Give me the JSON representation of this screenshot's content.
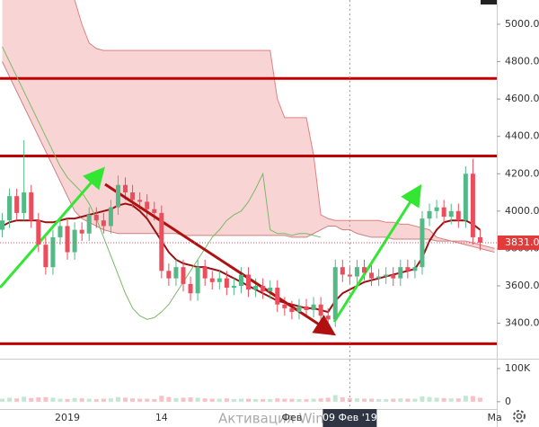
{
  "chart_data": {
    "type": "candlestick",
    "categories": [
      null,
      null,
      null,
      null,
      null,
      null,
      null,
      null,
      null,
      "2019",
      null,
      null,
      null,
      null,
      null,
      null,
      null,
      null,
      null,
      null,
      null,
      null,
      "14",
      null,
      null,
      null,
      null,
      null,
      null,
      null,
      null,
      null,
      null,
      null,
      null,
      null,
      null,
      null,
      null,
      null,
      "Фев",
      null,
      null,
      null,
      null,
      null,
      null,
      null,
      "09 Фев '19",
      null,
      null,
      null,
      null,
      null,
      null,
      null,
      null,
      null,
      null,
      null,
      null,
      null,
      null,
      null,
      null,
      null,
      null,
      null,
      "Ма"
    ],
    "open": [
      3900,
      3950,
      4080,
      3990,
      4100,
      3950,
      3820,
      3700,
      3860,
      3920,
      3780,
      3900,
      3880,
      3980,
      3950,
      3920,
      4020,
      4140,
      4100,
      4060,
      4050,
      4010,
      3990,
      3680,
      3640,
      3700,
      3610,
      3560,
      3700,
      3640,
      3620,
      3640,
      3590,
      3600,
      3660,
      3580,
      3600,
      3570,
      3590,
      3500,
      3480,
      3460,
      3490,
      3470,
      3500,
      3440,
      3420,
      3700,
      3660,
      3650,
      3700,
      3670,
      3640,
      3650,
      3660,
      3640,
      3700,
      3680,
      3700,
      3960,
      4000,
      4020,
      3970,
      4000,
      3950,
      4200,
      3860,
      null,
      null
    ],
    "high": [
      3990,
      4120,
      4120,
      4380,
      4140,
      3990,
      3860,
      3900,
      3960,
      3960,
      3940,
      3940,
      4020,
      4020,
      3990,
      4060,
      4190,
      4180,
      4140,
      4100,
      4090,
      4050,
      4030,
      3720,
      3740,
      3740,
      3650,
      3740,
      3740,
      3680,
      3680,
      3680,
      3640,
      3700,
      3700,
      3640,
      3640,
      3630,
      3630,
      3540,
      3520,
      3530,
      3530,
      3540,
      3540,
      3480,
      3740,
      3740,
      3700,
      3740,
      3740,
      3710,
      3690,
      3700,
      3700,
      3740,
      3740,
      3740,
      4000,
      4040,
      4060,
      4060,
      4040,
      4040,
      4240,
      4280,
      3900,
      null,
      null
    ],
    "low": [
      3860,
      3910,
      3950,
      3950,
      3910,
      3780,
      3660,
      3660,
      3820,
      3740,
      3740,
      3840,
      3840,
      3910,
      3880,
      3880,
      3980,
      4060,
      4020,
      4010,
      3970,
      3950,
      3640,
      3600,
      3600,
      3570,
      3520,
      3520,
      3600,
      3580,
      3580,
      3550,
      3550,
      3560,
      3540,
      3540,
      3530,
      3530,
      3460,
      3440,
      3420,
      3420,
      3430,
      3430,
      3400,
      3380,
      3380,
      3620,
      3610,
      3610,
      3630,
      3600,
      3600,
      3610,
      3600,
      3600,
      3640,
      3640,
      3660,
      3920,
      3960,
      3930,
      3930,
      3910,
      3910,
      3820,
      3790,
      null,
      null
    ],
    "close": [
      3950,
      4080,
      3990,
      4100,
      3950,
      3820,
      3700,
      3860,
      3920,
      3780,
      3900,
      3880,
      3980,
      3950,
      3920,
      4020,
      4140,
      4100,
      4060,
      4050,
      4010,
      3990,
      3680,
      3640,
      3700,
      3610,
      3560,
      3700,
      3640,
      3620,
      3640,
      3590,
      3600,
      3660,
      3580,
      3600,
      3570,
      3590,
      3500,
      3480,
      3460,
      3490,
      3470,
      3500,
      3440,
      3420,
      3700,
      3660,
      3650,
      3700,
      3670,
      3640,
      3650,
      3660,
      3640,
      3700,
      3680,
      3700,
      3960,
      4000,
      4020,
      3970,
      4000,
      3950,
      4200,
      3860,
      3831,
      null,
      null
    ],
    "volume": [
      9000,
      12000,
      10000,
      15000,
      11000,
      13000,
      14000,
      12000,
      9000,
      8000,
      11000,
      10000,
      9000,
      8000,
      9000,
      10000,
      14000,
      12000,
      10000,
      9000,
      9000,
      8000,
      18000,
      14000,
      11000,
      12000,
      13000,
      12000,
      10000,
      9000,
      9000,
      10000,
      8000,
      9000,
      9000,
      8000,
      8000,
      8000,
      10000,
      9000,
      9000,
      8000,
      8000,
      9000,
      10000,
      12000,
      20000,
      13000,
      11000,
      10000,
      9000,
      9000,
      8000,
      8000,
      9000,
      10000,
      9000,
      9000,
      16000,
      14000,
      12000,
      11000,
      10000,
      10000,
      18000,
      17000,
      12000,
      null,
      null
    ],
    "up_color": "#53b987",
    "down_color": "#eb4d5c",
    "ylim": [
      3210,
      5130
    ],
    "yticks": [
      {
        "value": 5000,
        "label": "5000.0"
      },
      {
        "value": 4800,
        "label": "4800.0"
      },
      {
        "value": 4600,
        "label": "4600.0"
      },
      {
        "value": 4400,
        "label": "4400.0"
      },
      {
        "value": 4200,
        "label": "4200.0"
      },
      {
        "value": 4000,
        "label": "4000.0"
      },
      {
        "value": 3800,
        "label": "3800.0"
      },
      {
        "value": 3600,
        "label": "3600.0"
      },
      {
        "value": 3400,
        "label": "3400.0"
      }
    ],
    "volume_ylim": [
      -22000,
      127000
    ],
    "volume_yticks": [
      {
        "value": 100000,
        "label": "100K"
      },
      0
    ],
    "cloud": {
      "color": "#f7c6c6",
      "span_a": [
        4800,
        4720,
        4640,
        4560,
        4480,
        4400,
        4320,
        4240,
        4160,
        4080,
        4000,
        3960,
        3940,
        3920,
        3900,
        3890,
        3880,
        3880,
        3880,
        3880,
        3880,
        3880,
        3880,
        3880,
        3880,
        3870,
        3870,
        3870,
        3870,
        3870,
        3870,
        3870,
        3870,
        3870,
        3870,
        3870,
        3870,
        3870,
        3870,
        3870,
        3860,
        3860,
        3860,
        3880,
        3900,
        3920,
        3920,
        3900,
        3900,
        3880,
        3870,
        3860,
        3860,
        3860,
        3850,
        3850,
        3850,
        3850,
        3850,
        3850,
        3840,
        3840,
        3840,
        3830,
        3820,
        3810,
        3800,
        3790,
        3780
      ],
      "span_b": [
        5300,
        5300,
        5300,
        5300,
        5300,
        5300,
        5300,
        5300,
        5300,
        5300,
        5130,
        5000,
        4900,
        4870,
        4860,
        4860,
        4860,
        4860,
        4860,
        4860,
        4860,
        4860,
        4860,
        4860,
        4860,
        4860,
        4860,
        4860,
        4860,
        4860,
        4860,
        4860,
        4860,
        4860,
        4860,
        4860,
        4860,
        4860,
        4600,
        4500,
        4500,
        4500,
        4500,
        4300,
        3980,
        3960,
        3950,
        3950,
        3950,
        3950,
        3950,
        3950,
        3950,
        3940,
        3940,
        3930,
        3930,
        3920,
        3910,
        3900,
        3860,
        3850,
        3840,
        3840,
        3840,
        3830,
        3820,
        3810,
        3800
      ]
    },
    "series": [
      {
        "color": "#9b1111",
        "values": [
          3920,
          3940,
          3950,
          3950,
          3950,
          3950,
          3940,
          3940,
          3950,
          3960,
          3960,
          3970,
          3980,
          3990,
          4000,
          4010,
          4030,
          4040,
          4030,
          4000,
          3960,
          3900,
          3840,
          3780,
          3740,
          3720,
          3710,
          3700,
          3700,
          3690,
          3680,
          3660,
          3640,
          3620,
          3600,
          3580,
          3560,
          3540,
          3520,
          3510,
          3500,
          3490,
          3480,
          3480,
          3470,
          3460,
          3520,
          3560,
          3580,
          3600,
          3620,
          3630,
          3640,
          3650,
          3660,
          3670,
          3680,
          3690,
          3750,
          3840,
          3900,
          3940,
          3950,
          3950,
          3950,
          3930,
          3900,
          null,
          null
        ]
      },
      {
        "color": "#7cb86a",
        "values": [
          4880,
          4800,
          4720,
          4640,
          4560,
          4480,
          4400,
          4320,
          4240,
          4180,
          4140,
          4100,
          4040,
          3960,
          3860,
          3760,
          3660,
          3560,
          3480,
          3440,
          3420,
          3430,
          3460,
          3500,
          3560,
          3620,
          3680,
          3740,
          3800,
          3860,
          3900,
          3950,
          3980,
          4000,
          4050,
          4120,
          4200,
          3900,
          3880,
          3880,
          3870,
          3880,
          3880,
          3870,
          3860,
          null,
          null,
          null,
          null,
          null,
          null,
          null,
          null,
          null,
          null,
          null,
          null,
          null,
          null,
          null,
          null,
          null,
          null,
          null,
          null,
          null,
          null,
          null,
          null
        ]
      }
    ],
    "levels": [
      4710,
      4295,
      3290
    ],
    "level_color": "#c00000",
    "last_price": {
      "value": 3831,
      "label": "3831.0"
    },
    "watermark": "Активация Windows"
  }
}
